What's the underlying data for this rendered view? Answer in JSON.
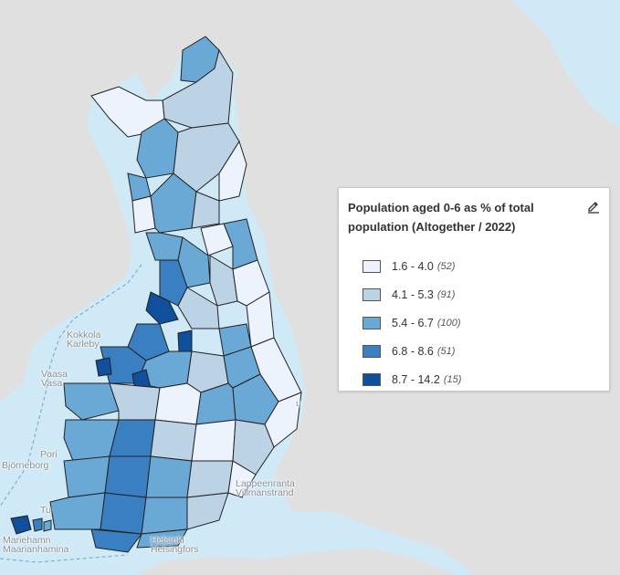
{
  "map": {
    "colors": {
      "sea": "#cfe9f6",
      "land": "#e0e0e0",
      "border": "#222222",
      "class1": "#edf3fc",
      "class2": "#bcd3e6",
      "class3": "#6aa8d6",
      "class4": "#3a7fc2",
      "class5": "#0f4f9c"
    }
  },
  "labels": {
    "kokkola": "Kokkola",
    "karleby": "Karleby",
    "vaasa": "Vaasa",
    "vasa": "Vasa",
    "pori": "Pori",
    "bjorneborg": "Björneborg",
    "lappeenranta": "Lappeenranta",
    "villmanstrand": "Villmanstrand",
    "helsinki": "Helsinki",
    "helsingfors": "Helsingfors",
    "mariehamn": "Mariehamn",
    "maarianhamina": "Maarianhamina",
    "turku_partial": "Tu",
    "joensuu_partial": "u"
  },
  "legend": {
    "title": "Population aged 0-6 as % of total population (Altogether / 2022)",
    "edit_icon": "pencil-icon",
    "items": [
      {
        "range": "1.6 - 4.0",
        "count": "(52)",
        "color": "#edf3fc"
      },
      {
        "range": "4.1 - 5.3",
        "count": "(91)",
        "color": "#bcd3e6"
      },
      {
        "range": "5.4 - 6.7",
        "count": "(100)",
        "color": "#6aa8d6"
      },
      {
        "range": "6.8 - 8.6",
        "count": "(51)",
        "color": "#3a7fc2"
      },
      {
        "range": "8.7 - 14.2",
        "count": "(15)",
        "color": "#0f4f9c"
      }
    ]
  }
}
